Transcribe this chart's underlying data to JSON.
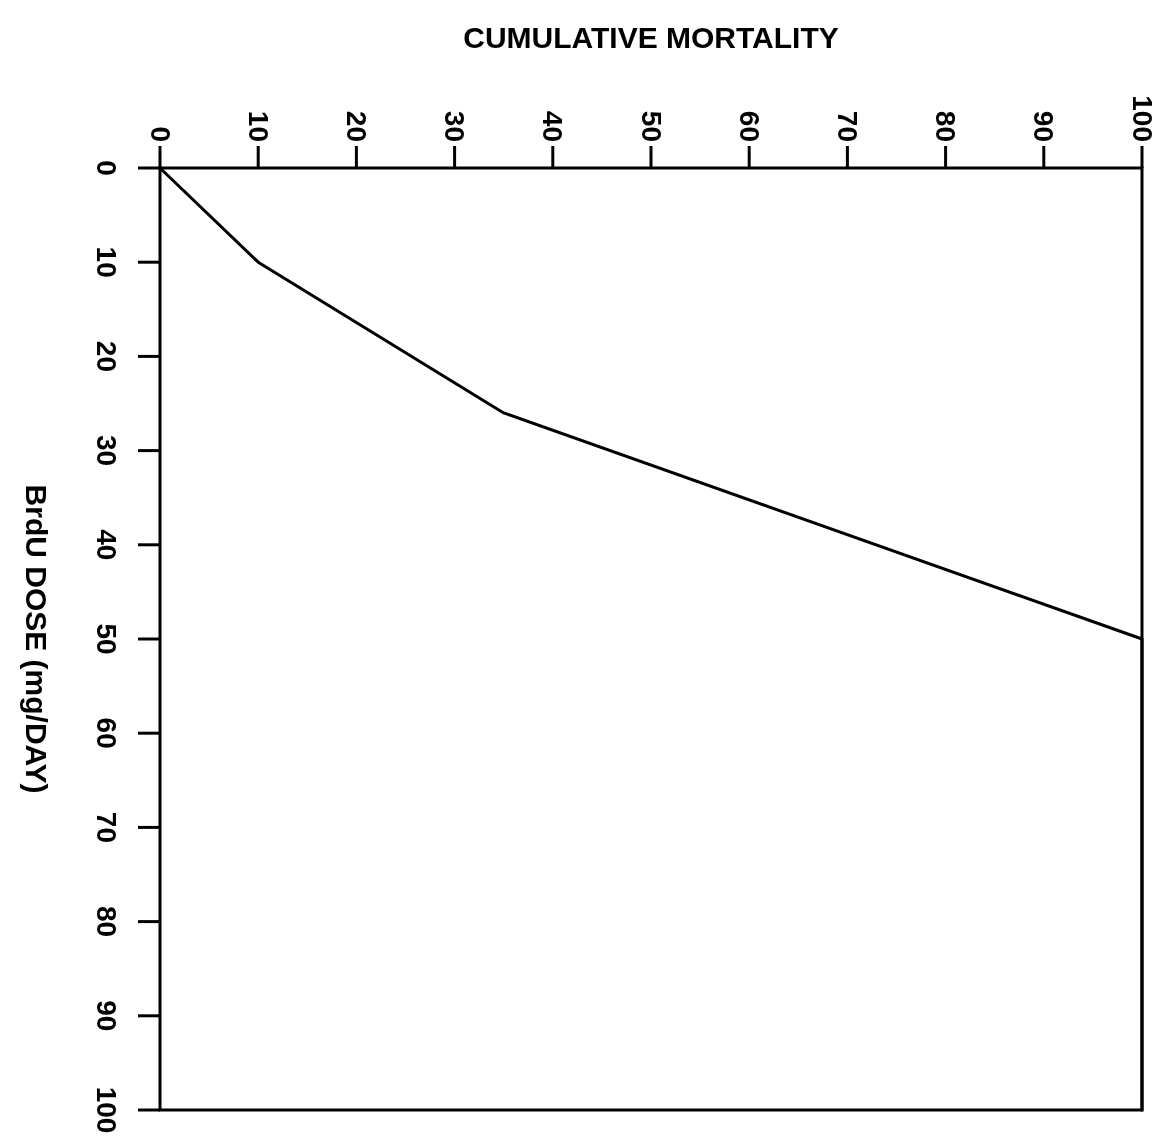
{
  "chart_data": {
    "type": "line",
    "xlabel": "CUMULATIVE MORTALITY",
    "ylabel": "BrdU DOSE (mg/DAY)",
    "xlim": [
      0,
      100
    ],
    "xticks": [
      0,
      10,
      20,
      30,
      40,
      50,
      60,
      70,
      80,
      90,
      100
    ],
    "ylim": [
      100,
      0
    ],
    "yticks": [
      0,
      10,
      20,
      30,
      40,
      50,
      60,
      70,
      80,
      90,
      100
    ],
    "grid": false,
    "marker": "none",
    "line_style": "solid",
    "series": [
      {
        "color": "#000000",
        "x": [
          0,
          10,
          35,
          100,
          100
        ],
        "values": [
          0,
          10,
          26,
          50,
          100
        ]
      }
    ]
  }
}
